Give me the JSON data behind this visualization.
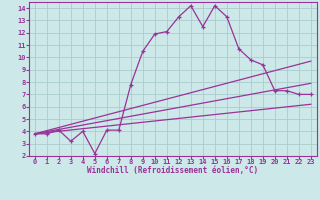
{
  "background_color": "#cce8e8",
  "grid_color": "#aacccc",
  "line_color": "#993399",
  "xlabel": "Windchill (Refroidissement éolien,°C)",
  "xlim": [
    -0.5,
    23.5
  ],
  "ylim": [
    2,
    14.5
  ],
  "xticks": [
    0,
    1,
    2,
    3,
    4,
    5,
    6,
    7,
    8,
    9,
    10,
    11,
    12,
    13,
    14,
    15,
    16,
    17,
    18,
    19,
    20,
    21,
    22,
    23
  ],
  "yticks": [
    2,
    3,
    4,
    5,
    6,
    7,
    8,
    9,
    10,
    11,
    12,
    13,
    14
  ],
  "series1_x": [
    0,
    1,
    2,
    3,
    4,
    5,
    6,
    7,
    8,
    9,
    10,
    11,
    12,
    13,
    14,
    15,
    16,
    17,
    18,
    19,
    20,
    21,
    22,
    23
  ],
  "series1_y": [
    3.8,
    3.8,
    4.1,
    3.2,
    4.0,
    2.2,
    4.1,
    4.1,
    7.8,
    10.5,
    11.9,
    12.1,
    13.3,
    14.2,
    12.5,
    14.2,
    13.3,
    10.7,
    9.8,
    9.4,
    7.3,
    7.3,
    7.0,
    7.0
  ],
  "line2": [
    [
      0,
      3.8
    ],
    [
      23,
      9.7
    ]
  ],
  "line3": [
    [
      0,
      3.8
    ],
    [
      23,
      7.9
    ]
  ],
  "line4": [
    [
      0,
      3.8
    ],
    [
      23,
      6.2
    ]
  ]
}
